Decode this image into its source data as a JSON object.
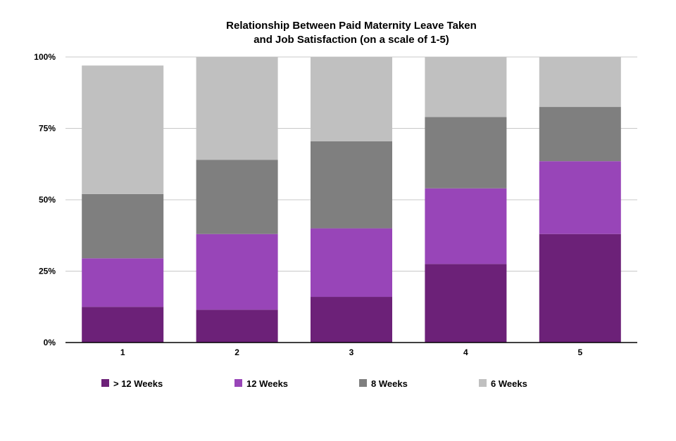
{
  "chart_data": {
    "type": "bar",
    "stacked": true,
    "title_lines": [
      "Relationship Between Paid Maternity Leave Taken",
      "and Job Satisfaction (on a scale of 1-5)"
    ],
    "xlabel": "",
    "ylabel": "",
    "ylim": [
      0,
      100
    ],
    "y_ticks": [
      0,
      25,
      50,
      75,
      100
    ],
    "y_tick_labels": [
      "0%",
      "25%",
      "50%",
      "75%",
      "100%"
    ],
    "grid": true,
    "legend_position": "bottom",
    "categories": [
      "1",
      "2",
      "3",
      "4",
      "5"
    ],
    "series": [
      {
        "name": "> 12 Weeks",
        "color": "#6c2178",
        "values": [
          12.5,
          11.5,
          16,
          27.5,
          38
        ]
      },
      {
        "name": "12 Weeks",
        "color": "#9845b8",
        "values": [
          17,
          26.5,
          24,
          26.5,
          25.5
        ]
      },
      {
        "name": "8 Weeks",
        "color": "#7f7f7f",
        "values": [
          22.5,
          26,
          30.5,
          25,
          19
        ]
      },
      {
        "name": "6 Weeks",
        "color": "#c0c0c0",
        "values": [
          45,
          36,
          29.5,
          21,
          17.5
        ]
      }
    ]
  }
}
